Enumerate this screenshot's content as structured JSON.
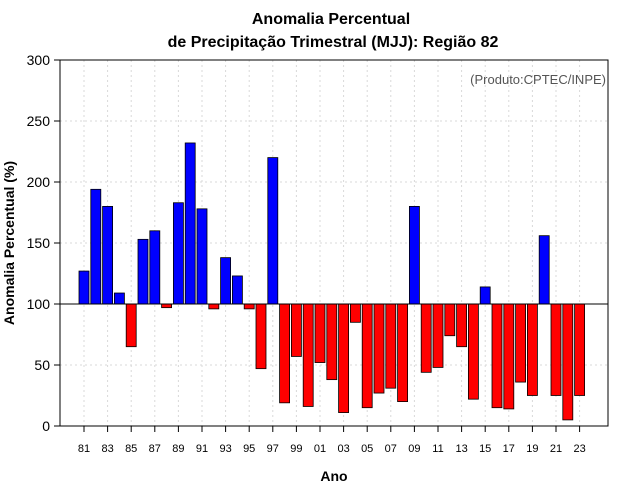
{
  "chart_data": {
    "type": "bar",
    "title_line1": "Anomalia Percentual",
    "title_line2": "de Precipitação Trimestral (MJJ): Região 82",
    "credit": "(Produto:CPTEC/INPE)",
    "xlabel": "Ano",
    "ylabel": "Anomalia Percentual (%)",
    "ylim": [
      0,
      300
    ],
    "yticks": [
      0,
      50,
      100,
      150,
      200,
      250,
      300
    ],
    "baseline": 100,
    "colors": {
      "above": "#0000ff",
      "below": "#ff0000"
    },
    "categories": [
      "81",
      "82",
      "83",
      "84",
      "85",
      "86",
      "87",
      "88",
      "89",
      "90",
      "91",
      "92",
      "93",
      "94",
      "95",
      "96",
      "97",
      "98",
      "99",
      "00",
      "01",
      "02",
      "03",
      "04",
      "05",
      "06",
      "07",
      "08",
      "09",
      "10",
      "11",
      "12",
      "13",
      "14",
      "15",
      "16",
      "17",
      "18",
      "19",
      "20",
      "21",
      "22",
      "23"
    ],
    "xtick_labels": [
      "81",
      "83",
      "85",
      "87",
      "89",
      "91",
      "93",
      "95",
      "97",
      "99",
      "01",
      "03",
      "05",
      "07",
      "09",
      "11",
      "13",
      "15",
      "17",
      "19",
      "21",
      "23"
    ],
    "values": [
      127,
      194,
      180,
      109,
      65,
      153,
      160,
      97,
      183,
      232,
      178,
      96,
      138,
      123,
      96,
      47,
      220,
      19,
      57,
      16,
      52,
      38,
      11,
      85,
      15,
      27,
      31,
      20,
      180,
      44,
      48,
      74,
      65,
      22,
      114,
      15,
      14,
      36,
      25,
      156,
      25,
      5,
      25
    ]
  }
}
